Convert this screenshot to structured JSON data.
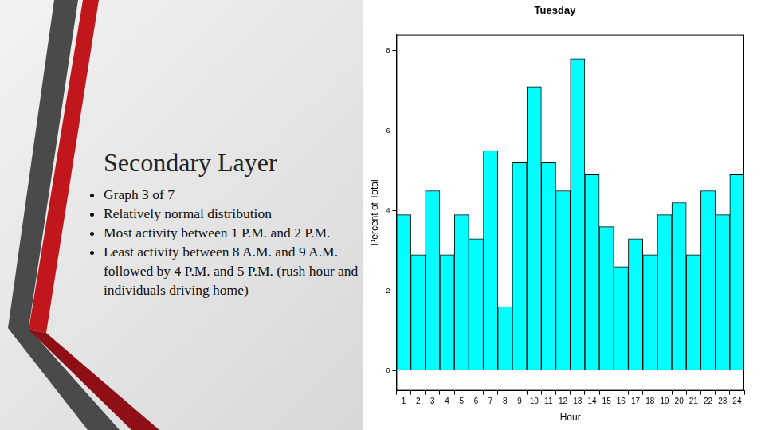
{
  "slide": {
    "title": "Secondary Layer",
    "bullets": [
      "Graph 3 of 7",
      "Relatively normal distribution",
      "Most activity between 1 P.M. and 2 P.M.",
      "Least activity between 8 A.M. and 9 A.M. followed by 4 P.M. and 5 P.M. (rush hour and individuals driving home)"
    ]
  },
  "chart_data": {
    "type": "bar",
    "title": "Tuesday",
    "x_label": "Hour",
    "y_label": "Percent of Total",
    "categories": [
      "1",
      "2",
      "3",
      "4",
      "5",
      "6",
      "7",
      "8",
      "9",
      "10",
      "11",
      "12",
      "13",
      "14",
      "15",
      "16",
      "17",
      "18",
      "19",
      "20",
      "21",
      "22",
      "23",
      "24"
    ],
    "values": [
      3.9,
      2.9,
      4.5,
      2.9,
      3.9,
      3.3,
      5.5,
      1.6,
      5.2,
      7.1,
      5.2,
      4.5,
      7.8,
      4.9,
      3.6,
      2.6,
      3.3,
      2.9,
      3.9,
      4.2,
      2.9,
      4.5,
      3.9,
      4.9
    ],
    "color": "#00ffff",
    "ylim": [
      -0.5,
      8.4
    ],
    "yticks": [
      0,
      2,
      4,
      6,
      8
    ],
    "grid": false
  }
}
